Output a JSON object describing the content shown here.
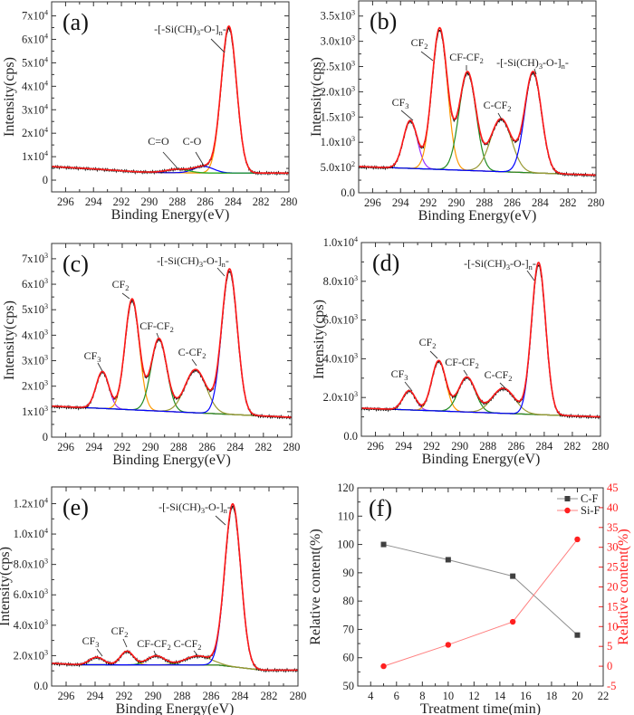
{
  "chart_data": [
    {
      "type": "line",
      "panel_label": "(a)",
      "xlabel": "Binding Energy(eV)",
      "ylabel": "Intensity(cps)",
      "xlim": [
        297,
        280
      ],
      "ylim": [
        -5000,
        76000
      ],
      "xticks": [
        296,
        294,
        292,
        290,
        288,
        286,
        284,
        282,
        280
      ],
      "yticks": [
        0,
        10000,
        20000,
        30000,
        40000,
        50000,
        60000,
        70000
      ],
      "ytick_labels": [
        "0",
        "1x10^4",
        "2x10^4",
        "3x10^4",
        "4x10^4",
        "5x10^4",
        "6x10^4",
        "7x10^4"
      ],
      "background": [
        [
          297,
          5800
        ],
        [
          294,
          4800
        ],
        [
          291,
          3600
        ],
        [
          289,
          3200
        ],
        [
          286,
          3050
        ],
        [
          280,
          3000
        ]
      ],
      "background_color": "#7a9a2a",
      "components": [
        {
          "center": 284.3,
          "height": 62500,
          "sigma": 0.55,
          "color": "#ff9900",
          "label": [
            {
              "t": "-[-Si(CH)"
            },
            {
              "t": "3",
              "sub": true
            },
            {
              "t": "-O-]"
            },
            {
              "t": "n",
              "sub": true
            },
            {
              "t": "-"
            }
          ]
        },
        {
          "center": 286.1,
          "height": 2800,
          "sigma": 0.7,
          "color": "#0000ff",
          "label": [
            {
              "t": "C-O"
            }
          ]
        },
        {
          "center": 288.0,
          "height": 1500,
          "sigma": 0.8,
          "color": "#22aa22",
          "label": [
            {
              "t": "C=O"
            }
          ]
        }
      ]
    },
    {
      "type": "line",
      "panel_label": "(b)",
      "xlabel": "Binding Energy(eV)",
      "ylabel": "Intensity(cps)",
      "xlim": [
        297,
        280
      ],
      "ylim": [
        0,
        3800
      ],
      "xticks": [
        296,
        294,
        292,
        290,
        288,
        286,
        284,
        282,
        280
      ],
      "yticks": [
        0,
        500,
        1000,
        1500,
        2000,
        2500,
        3000,
        3500
      ],
      "ytick_labels": [
        "0.0",
        "5.0x10^2",
        "1.0x10^3",
        "1.5x10^3",
        "2.0x10^3",
        "2.5x10^3",
        "3.0x10^3",
        "3.5x10^3"
      ],
      "background": [
        [
          297,
          520
        ],
        [
          280,
          350
        ]
      ],
      "background_color": "#00e5ee",
      "components": [
        {
          "center": 293.3,
          "height": 950,
          "sigma": 0.5,
          "color": "#9b30ff",
          "label": [
            {
              "t": "CF"
            },
            {
              "t": "3",
              "sub": true
            }
          ]
        },
        {
          "center": 291.2,
          "height": 2800,
          "sigma": 0.55,
          "color": "#ff9900",
          "label": [
            {
              "t": "CF"
            },
            {
              "t": "2",
              "sub": true
            }
          ]
        },
        {
          "center": 289.2,
          "height": 1950,
          "sigma": 0.6,
          "color": "#228b22",
          "label": [
            {
              "t": "CF-CF"
            },
            {
              "t": "2",
              "sub": true
            }
          ]
        },
        {
          "center": 286.8,
          "height": 1050,
          "sigma": 0.75,
          "color": "#999933",
          "label": [
            {
              "t": "C-CF"
            },
            {
              "t": "2",
              "sub": true
            }
          ]
        },
        {
          "center": 284.5,
          "height": 2000,
          "sigma": 0.6,
          "color": "#0000ff",
          "label": [
            {
              "t": "-[-Si(CH)"
            },
            {
              "t": "3",
              "sub": true
            },
            {
              "t": "-O-]"
            },
            {
              "t": "n",
              "sub": true
            },
            {
              "t": "-"
            }
          ]
        }
      ]
    },
    {
      "type": "line",
      "panel_label": "(c)",
      "xlabel": "Binding Energy(eV)",
      "ylabel": "Intensity(cps)",
      "xlim": [
        297,
        280
      ],
      "ylim": [
        0,
        7600
      ],
      "xticks": [
        296,
        294,
        292,
        290,
        288,
        286,
        284,
        282,
        280
      ],
      "yticks": [
        0,
        1000,
        2000,
        3000,
        4000,
        5000,
        6000,
        7000
      ],
      "ytick_labels": [
        "0",
        "1x10^3",
        "2x10^3",
        "3x10^3",
        "4x10^3",
        "5x10^3",
        "6x10^3",
        "7x10^3"
      ],
      "background": [
        [
          297,
          1220
        ],
        [
          280,
          780
        ]
      ],
      "background_color": "#00e5ee",
      "components": [
        {
          "center": 293.4,
          "height": 1450,
          "sigma": 0.45,
          "color": "#9b30ff",
          "label": [
            {
              "t": "CF"
            },
            {
              "t": "3",
              "sub": true
            }
          ]
        },
        {
          "center": 291.3,
          "height": 4350,
          "sigma": 0.5,
          "color": "#ff9900",
          "label": [
            {
              "t": "CF"
            },
            {
              "t": "2",
              "sub": true
            }
          ]
        },
        {
          "center": 289.4,
          "height": 2850,
          "sigma": 0.55,
          "color": "#228b22",
          "label": [
            {
              "t": "CF-CF"
            },
            {
              "t": "2",
              "sub": true
            }
          ]
        },
        {
          "center": 286.8,
          "height": 1700,
          "sigma": 0.75,
          "color": "#999933",
          "label": [
            {
              "t": "C-CF"
            },
            {
              "t": "2",
              "sub": true
            }
          ]
        },
        {
          "center": 284.4,
          "height": 5700,
          "sigma": 0.55,
          "color": "#0000ff",
          "label": [
            {
              "t": "-[-Si(CH)"
            },
            {
              "t": "3",
              "sub": true
            },
            {
              "t": "-O-]"
            },
            {
              "t": "n",
              "sub": true
            },
            {
              "t": "-"
            }
          ]
        }
      ]
    },
    {
      "type": "line",
      "panel_label": "(d)",
      "xlabel": "Binding Energy(eV)",
      "ylabel": "Intensity(cps)",
      "xlim": [
        297,
        280
      ],
      "ylim": [
        0,
        10000
      ],
      "xticks": [
        296,
        294,
        292,
        290,
        288,
        286,
        284,
        282,
        280
      ],
      "yticks": [
        0,
        2000,
        4000,
        6000,
        8000,
        10000
      ],
      "ytick_labels": [
        "0.0",
        "2.0x10^3",
        "4.0x10^3",
        "6.0x10^3",
        "8.0x10^3",
        "1.0x10^4"
      ],
      "background": [
        [
          297,
          1450
        ],
        [
          280,
          1000
        ]
      ],
      "background_color": "#00e5ee",
      "components": [
        {
          "center": 293.6,
          "height": 1000,
          "sigma": 0.45,
          "color": "#9b30ff",
          "label": [
            {
              "t": "CF"
            },
            {
              "t": "3",
              "sub": true
            }
          ]
        },
        {
          "center": 291.5,
          "height": 2600,
          "sigma": 0.5,
          "color": "#ff9900",
          "label": [
            {
              "t": "CF"
            },
            {
              "t": "2",
              "sub": true
            }
          ]
        },
        {
          "center": 289.5,
          "height": 1800,
          "sigma": 0.6,
          "color": "#228b22",
          "label": [
            {
              "t": "CF-CF"
            },
            {
              "t": "2",
              "sub": true
            }
          ]
        },
        {
          "center": 286.9,
          "height": 1300,
          "sigma": 0.8,
          "color": "#999933",
          "label": [
            {
              "t": "C-CF"
            },
            {
              "t": "2",
              "sub": true
            }
          ]
        },
        {
          "center": 284.4,
          "height": 7850,
          "sigma": 0.5,
          "color": "#0000ff",
          "label": [
            {
              "t": "-[-Si(CH)"
            },
            {
              "t": "3",
              "sub": true
            },
            {
              "t": "-O-]"
            },
            {
              "t": "n",
              "sub": true
            },
            {
              "t": "-"
            }
          ]
        }
      ]
    },
    {
      "type": "line",
      "panel_label": "(e)",
      "xlabel": "Binding Energy(eV)",
      "ylabel": "Intensity(cps)",
      "xlim": [
        297,
        280
      ],
      "ylim": [
        0,
        13100
      ],
      "xticks": [
        296,
        294,
        292,
        290,
        288,
        286,
        284,
        282,
        280
      ],
      "yticks": [
        0,
        2000,
        4000,
        6000,
        8000,
        10000,
        12000
      ],
      "ytick_labels": [
        "0.0",
        "2.0x10^3",
        "4.0x10^3",
        "6.0x10^3",
        "8.0x10^3",
        "1.0x10^4",
        "1.2x10^4"
      ],
      "background": [
        [
          297,
          1500
        ],
        [
          295,
          1400
        ],
        [
          285.5,
          1380
        ],
        [
          282.5,
          1050
        ],
        [
          280,
          1050
        ]
      ],
      "background_color": "#00e5ee",
      "components": [
        {
          "center": 293.9,
          "height": 500,
          "sigma": 0.5,
          "color": "#9b30ff",
          "label": [
            {
              "t": "CF"
            },
            {
              "t": "3",
              "sub": true
            }
          ]
        },
        {
          "center": 291.8,
          "height": 900,
          "sigma": 0.45,
          "color": "#ff9900",
          "label": [
            {
              "t": "CF"
            },
            {
              "t": "2",
              "sub": true
            }
          ]
        },
        {
          "center": 289.8,
          "height": 600,
          "sigma": 0.6,
          "color": "#228b22",
          "label": [
            {
              "t": "CF-CF"
            },
            {
              "t": "2",
              "sub": true
            }
          ]
        },
        {
          "center": 286.9,
          "height": 600,
          "sigma": 0.9,
          "color": "#999933",
          "label": [
            {
              "t": "C-CF"
            },
            {
              "t": "2",
              "sub": true
            }
          ]
        },
        {
          "center": 284.5,
          "height": 10700,
          "sigma": 0.55,
          "color": "#0000ff",
          "label": [
            {
              "t": "-[-Si(CH)"
            },
            {
              "t": "3",
              "sub": true
            },
            {
              "t": "-O-]"
            },
            {
              "t": "n",
              "sub": true
            },
            {
              "t": "-"
            }
          ]
        }
      ]
    },
    {
      "type": "line",
      "panel_label": "(f)",
      "xlabel": "Treatment time(min)",
      "ylabel": "Relative content(%)",
      "ylabel_right": "Relative content(%)",
      "xlim": [
        3,
        22
      ],
      "ylim": [
        50,
        120
      ],
      "ylim_right": [
        -5,
        45
      ],
      "xticks": [
        4,
        6,
        8,
        10,
        12,
        14,
        16,
        18,
        20,
        22
      ],
      "yticks": [
        50,
        60,
        70,
        80,
        90,
        100,
        110,
        120
      ],
      "yticks_right": [
        -5,
        0,
        5,
        10,
        15,
        20,
        25,
        30,
        35,
        40,
        45
      ],
      "right_axis_color": "#ff2020",
      "legend_position": "top-right",
      "x": [
        5,
        10,
        15,
        20
      ],
      "series": [
        {
          "name": "C-F",
          "axis": "left",
          "values": [
            100,
            94.6,
            88.8,
            68
          ],
          "color": "#404040",
          "line_color": "#909090",
          "marker": "square"
        },
        {
          "name": "Si-F",
          "axis": "right",
          "values": [
            0,
            5.4,
            11.2,
            32
          ],
          "color": "#ff2020",
          "line_color": "#ff8080",
          "marker": "circle"
        }
      ]
    }
  ]
}
